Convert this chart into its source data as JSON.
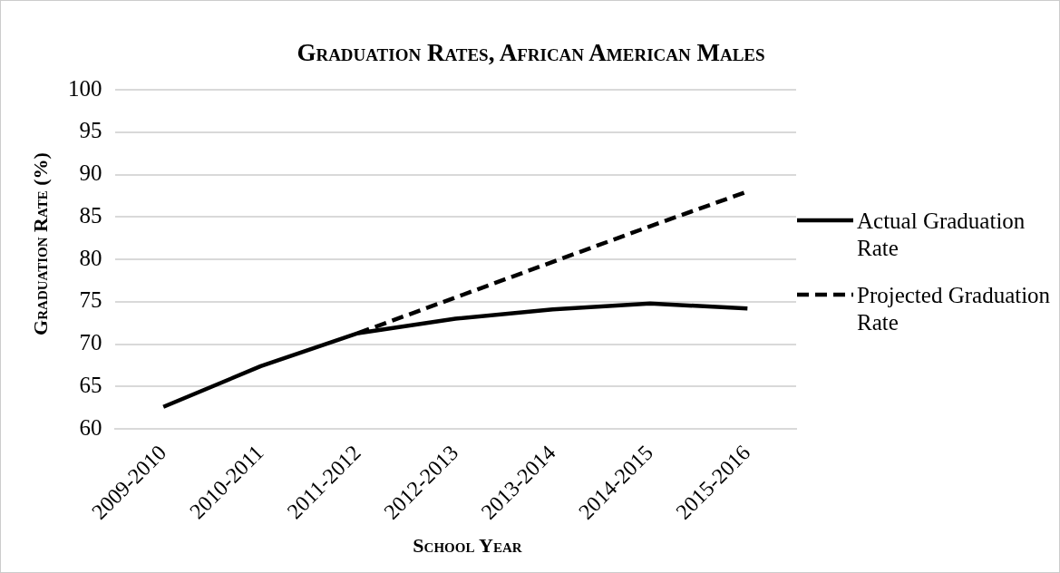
{
  "chart_data": {
    "type": "line",
    "title": "Graduation Rates, African American Males",
    "xlabel": "School Year",
    "ylabel": "Graduation Rate (%)",
    "categories": [
      "2009-2010",
      "2010-2011",
      "2011-2012",
      "2012-2013",
      "2013-2014",
      "2014-2015",
      "2015-2016"
    ],
    "series": [
      {
        "name": "Actual Graduation Rate",
        "color": "#000000",
        "line_style": "solid",
        "values": [
          62.6,
          67.4,
          71.3,
          73.0,
          74.1,
          74.8,
          74.2
        ]
      },
      {
        "name": "Projected Graduation Rate",
        "color": "#000000",
        "line_style": "dashed",
        "values": [
          null,
          null,
          71.3,
          75.5,
          79.7,
          83.9,
          88.0
        ]
      }
    ],
    "ylim": [
      60,
      100
    ],
    "yticks": [
      60,
      65,
      70,
      75,
      80,
      85,
      90,
      95,
      100
    ],
    "grid": "y",
    "legend": "right",
    "marker": "none"
  }
}
